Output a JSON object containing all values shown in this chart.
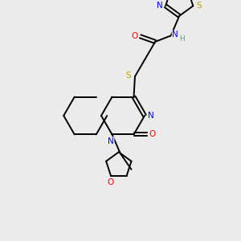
{
  "bg_color": "#ebebeb",
  "atom_colors": {
    "C": "#000000",
    "N": "#0000ff",
    "O": "#ff0000",
    "S": "#b8a000",
    "H": "#5599aa"
  },
  "figsize": [
    3.0,
    3.0
  ],
  "dpi": 100,
  "lw": 1.4,
  "fontsize": 7.5
}
